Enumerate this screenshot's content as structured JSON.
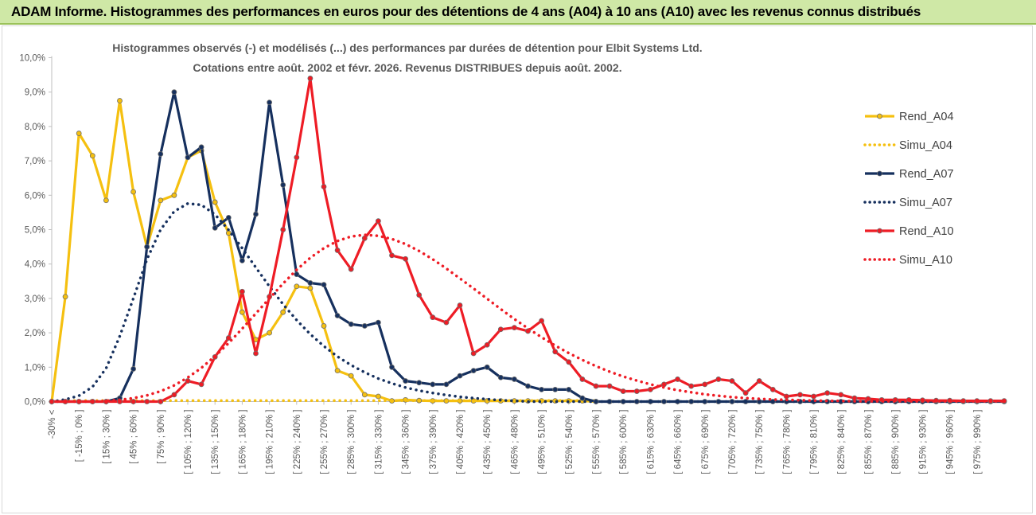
{
  "header": {
    "title": "ADAM Informe. Histogrammes des performances en euros pour des détentions de 4 ans (A04) à 10 ans (A10) avec les revenus connus distribués"
  },
  "chart_data": {
    "type": "line",
    "title_line1": "Histogrammes observés (-) et modélisés (...) des performances par durées de détention pour Elbit Systems Ltd.",
    "title_line2": "Cotations entre août. 2002 et févr. 2026. Revenus DISTRIBUES depuis août. 2002.",
    "ylim": [
      0,
      10
    ],
    "yticks": [
      "0,0%",
      "1,0%",
      "2,0%",
      "3,0%",
      "4,0%",
      "5,0%",
      "6,0%",
      "7,0%",
      "8,0%",
      "9,0%",
      "10,0%"
    ],
    "xlabels": [
      "-30% <",
      "[ -15% ; 0% ]",
      "[ 15% ; 30% ]",
      "[ 45% ; 60% ]",
      "[ 75% ; 90% ]",
      "[ 105% ; 120% ]",
      "[ 135% ; 150% ]",
      "[ 165% ; 180% ]",
      "[ 195% ; 210% ]",
      "[ 225% ; 240% ]",
      "[ 255% ; 270% ]",
      "[ 285% ; 300% ]",
      "[ 315% ; 330% ]",
      "[ 345% ; 360% ]",
      "[ 375% ; 390% ]",
      "[ 405% ; 420% ]",
      "[ 435% ; 450% ]",
      "[ 465% ; 480% ]",
      "[ 495% ; 510% ]",
      "[ 525% ; 540% ]",
      "[ 555% ; 570% ]",
      "[ 585% ; 600% ]",
      "[ 615% ; 630% ]",
      "[ 645% ; 660% ]",
      "[ 675% ; 690% ]",
      "[ 705% ; 720% ]",
      "[ 735% ; 750% ]",
      "[ 765% ; 780% ]",
      "[ 795% ; 810% ]",
      "[ 825% ; 840% ]",
      "[ 855% ; 870% ]",
      "[ 885% ; 900% ]",
      "[ 915% ; 930% ]",
      "[ 945% ; 960% ]",
      "[ 975% ; 990% ]"
    ],
    "series": [
      {
        "name": "Rend_A04",
        "color": "#f5c010",
        "style": "solid",
        "values": [
          0,
          3.05,
          7.8,
          7.15,
          5.85,
          8.75,
          6.1,
          4.5,
          5.85,
          6.0,
          7.1,
          7.3,
          5.8,
          4.9,
          2.6,
          1.8,
          2.0,
          2.6,
          3.35,
          3.3,
          2.2,
          0.9,
          0.75,
          0.2,
          0.15,
          0.02,
          0.05,
          0.03,
          0.02,
          0.02,
          0.02,
          0.02,
          0.02,
          0.02,
          0.02,
          0.02,
          0.02,
          0.02,
          0.02,
          0.02,
          0
        ]
      },
      {
        "name": "Simu_A04",
        "color": "#f5c010",
        "style": "dotted",
        "values": [
          0,
          0.02,
          0.03,
          0.03,
          0.03,
          0.03,
          0.03,
          0.03,
          0.03,
          0.03,
          0.03,
          0.03,
          0.03,
          0.03,
          0.03,
          0.03,
          0.03,
          0.03,
          0.03,
          0.03,
          0.03,
          0.03,
          0.03,
          0.03,
          0.03,
          0.03,
          0.03,
          0.03,
          0.03,
          0.03,
          0.03,
          0.03,
          0.03,
          0.03,
          0.03,
          0.03,
          0.03,
          0.03,
          0.03,
          0.03,
          0.03
        ]
      },
      {
        "name": "Rend_A07",
        "color": "#16305e",
        "style": "solid",
        "values": [
          0,
          0,
          0,
          0,
          0,
          0.1,
          0.95,
          4.5,
          7.2,
          9.0,
          7.1,
          7.4,
          5.05,
          5.35,
          4.1,
          5.45,
          8.7,
          6.3,
          3.7,
          3.45,
          3.4,
          2.5,
          2.25,
          2.2,
          2.3,
          1.0,
          0.6,
          0.55,
          0.5,
          0.5,
          0.75,
          0.9,
          1.0,
          0.7,
          0.65,
          0.45,
          0.35,
          0.35,
          0.35,
          0.1,
          0,
          0,
          0,
          0,
          0,
          0,
          0,
          0,
          0,
          0,
          0,
          0,
          0,
          0,
          0,
          0,
          0,
          0,
          0,
          0,
          0,
          0,
          0,
          0,
          0,
          0,
          0,
          0,
          0,
          0,
          0
        ]
      },
      {
        "name": "Simu_A07",
        "color": "#16305e",
        "style": "dotted",
        "values": [
          0,
          0.06,
          0.17,
          0.43,
          0.97,
          1.9,
          3.0,
          4.14,
          5.0,
          5.53,
          5.76,
          5.72,
          5.44,
          4.99,
          4.46,
          3.9,
          3.35,
          2.83,
          2.37,
          1.96,
          1.61,
          1.31,
          1.06,
          0.85,
          0.67,
          0.53,
          0.41,
          0.32,
          0.25,
          0.19,
          0.14,
          0.1,
          0.07,
          0.04,
          0.02,
          0,
          0,
          0,
          0,
          0,
          0,
          0,
          0,
          0,
          0,
          0,
          0,
          0,
          0,
          0,
          0,
          0,
          0,
          0,
          0,
          0,
          0,
          0,
          0,
          0,
          0,
          0,
          0,
          0,
          0,
          0,
          0,
          0,
          0,
          0
        ]
      },
      {
        "name": "Rend_A10",
        "color": "#ee1c25",
        "style": "solid",
        "values": [
          0,
          0,
          0,
          0,
          0,
          0,
          0,
          0,
          0,
          0.2,
          0.6,
          0.5,
          1.3,
          1.85,
          3.2,
          1.4,
          3.05,
          5.0,
          7.1,
          9.4,
          6.25,
          4.4,
          3.85,
          4.75,
          5.25,
          4.25,
          4.15,
          3.1,
          2.45,
          2.3,
          2.8,
          1.4,
          1.65,
          2.1,
          2.15,
          2.05,
          2.35,
          1.45,
          1.15,
          0.65,
          0.45,
          0.45,
          0.3,
          0.3,
          0.35,
          0.5,
          0.65,
          0.45,
          0.5,
          0.65,
          0.6,
          0.25,
          0.6,
          0.35,
          0.15,
          0.2,
          0.15,
          0.25,
          0.2,
          0.1,
          0.08,
          0.05,
          0.05,
          0.05,
          0.04,
          0.03,
          0.03,
          0.02,
          0.02,
          0.02,
          0.02
        ]
      },
      {
        "name": "Simu_A10",
        "color": "#ee1c25",
        "style": "dotted",
        "values": [
          0,
          0,
          0,
          0,
          0.02,
          0.05,
          0.1,
          0.18,
          0.3,
          0.47,
          0.7,
          0.98,
          1.32,
          1.7,
          2.12,
          2.56,
          3.0,
          3.43,
          3.83,
          4.18,
          4.46,
          4.67,
          4.8,
          4.85,
          4.82,
          4.73,
          4.58,
          4.38,
          4.14,
          3.87,
          3.58,
          3.29,
          2.99,
          2.69,
          2.4,
          2.13,
          1.87,
          1.63,
          1.41,
          1.21,
          1.03,
          0.87,
          0.73,
          0.61,
          0.5,
          0.41,
          0.33,
          0.27,
          0.21,
          0.17,
          0.13,
          0.1,
          0.08,
          0.06,
          0.05,
          0.04,
          0.03,
          0.02,
          0.02,
          0.01,
          0.01,
          0.01,
          0.01,
          0.01,
          0.01,
          0.01,
          0.01,
          0.01,
          0.01,
          0.01,
          0.01
        ]
      }
    ]
  }
}
